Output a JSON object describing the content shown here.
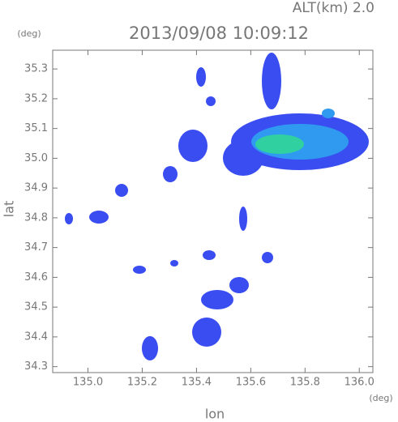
{
  "chart_data": {
    "type": "map",
    "title": "2013/09/08 10:09:12",
    "subtitle": "ALT(km) 2.0",
    "x_label": "lon",
    "y_label": "lat",
    "x_unit": "(deg)",
    "y_unit": "(deg)",
    "xlim": [
      134.87,
      136.05
    ],
    "ylim": [
      34.28,
      35.363
    ],
    "xticks": [
      {
        "value": 135.0,
        "label": "135.0"
      },
      135.2,
      135.4,
      135.6,
      135.8,
      {
        "value": 136.0,
        "label": "136.0"
      }
    ],
    "yticks": [
      34.3,
      34.4,
      34.5,
      34.6,
      34.7,
      34.8,
      34.9,
      {
        "value": 35.0,
        "label": "35.0"
      },
      35.1,
      35.2,
      35.3
    ]
  }
}
